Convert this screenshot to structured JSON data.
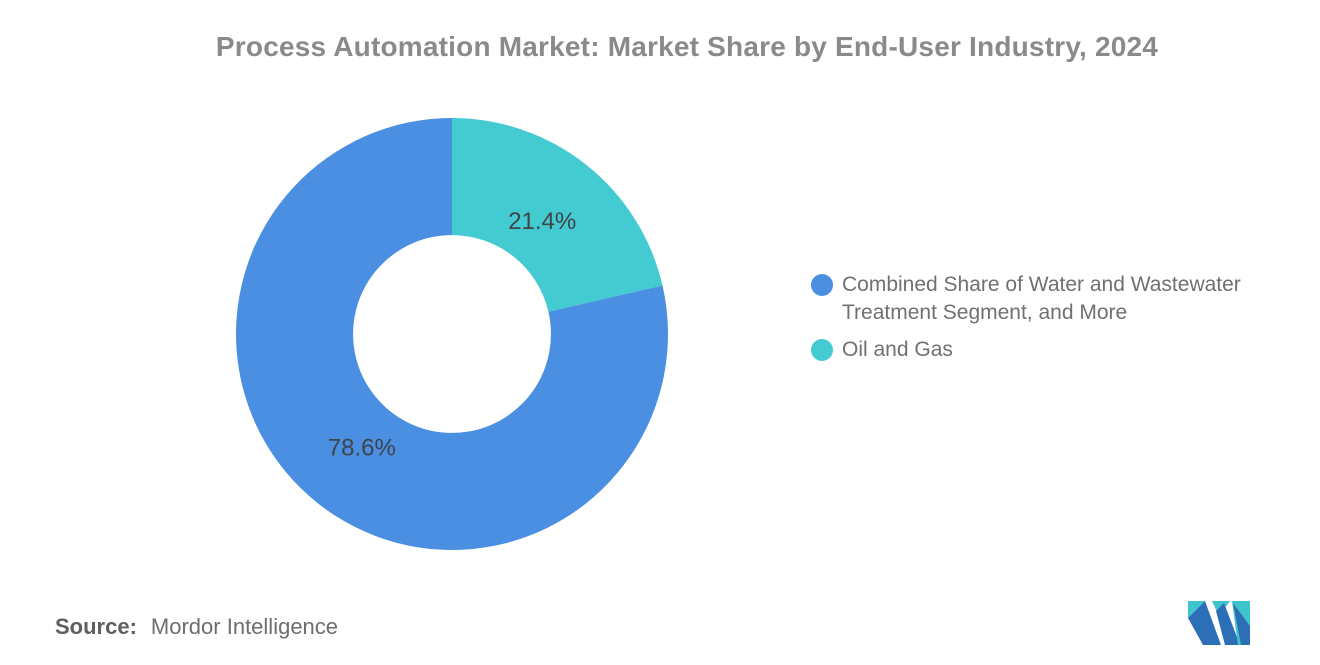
{
  "header": {
    "title": "Process Automation Market: Market Share by End-User Industry, 2024",
    "title_color": "#8A8A8A"
  },
  "chart_data": {
    "type": "pie",
    "subtype": "donut",
    "title": "Process Automation Market: Market Share by End-User Industry, 2024",
    "inner_radius_ratio": 0.458,
    "start_angle_deg": 0,
    "direction": "clockwise-from-top, segments drawn in reverse legend order",
    "legend_position": "right",
    "values_unit": "%",
    "data_label_color": "#3F4449",
    "segments": [
      {
        "label": "Combined Share of Water and Wastewater Treatment Segment, and More",
        "value": 78.6,
        "data_label": "78.6%",
        "color": "#4A8FE2"
      },
      {
        "label": "Oil and Gas",
        "value": 21.4,
        "data_label": "21.4%",
        "color": "#44CBD1"
      }
    ]
  },
  "legend": {
    "items": [
      {
        "label": "Combined Share of Water and Wastewater Treatment Segment, and More",
        "color": "#4A8FE2"
      },
      {
        "label": "Oil and Gas",
        "color": "#44CBD1"
      }
    ],
    "text_color": "#6E7073"
  },
  "footer": {
    "source_label": "Source:",
    "source_value": "Mordor Intelligence"
  },
  "logo": {
    "name": "mordor-intelligence-logo",
    "blue": "#2D6FB7",
    "teal": "#3EC4CB"
  }
}
